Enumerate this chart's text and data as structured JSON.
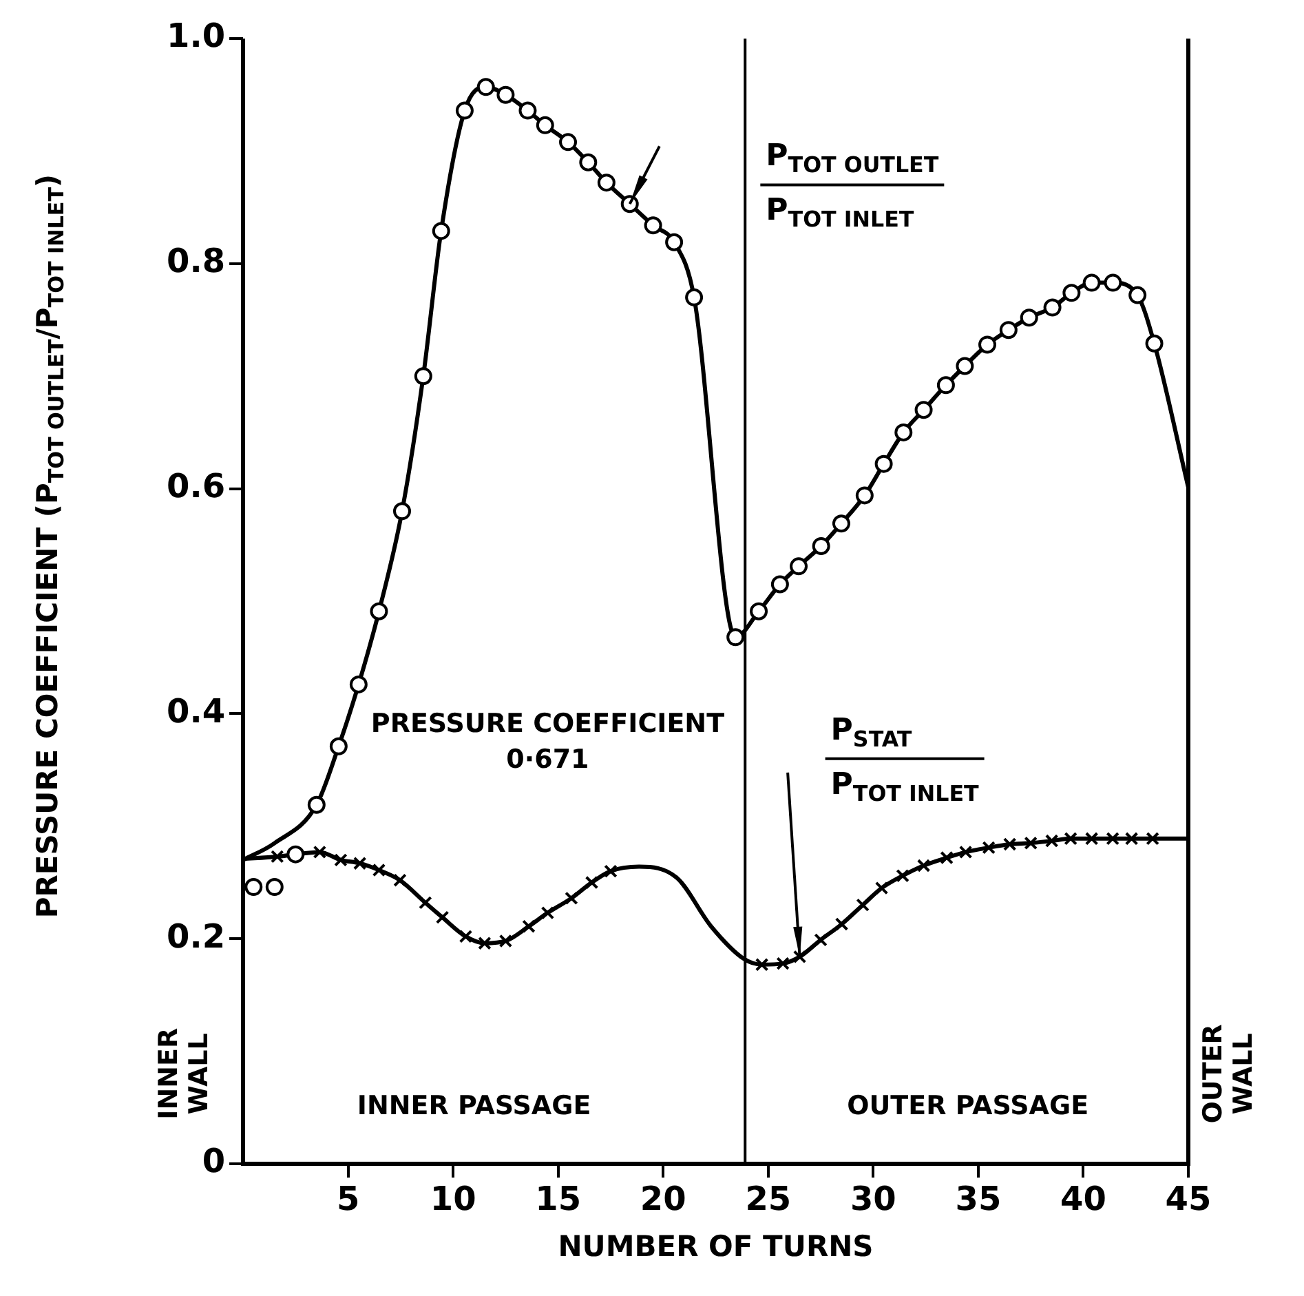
{
  "chart_data": {
    "type": "line",
    "xlabel": "NUMBER OF TURNS",
    "ylabel": "PRESSURE COEFFICIENT (P$_{TOT OUTLET}$/P$_{TOT INLET}$)",
    "xlim": [
      0,
      45
    ],
    "xticks": [
      5,
      10,
      15,
      20,
      25,
      30,
      35,
      40,
      45
    ],
    "ylim": [
      0,
      1
    ],
    "yticks": [
      0,
      0.2,
      0.4,
      0.6,
      0.8,
      {
        "value": 1,
        "label": "1.0"
      }
    ],
    "grid": false,
    "legend": false,
    "series": [
      {
        "name": "P$_{TOT OUTLET}$\nP$_{TOT INLET}$",
        "color": "#000000",
        "marker": "none",
        "x": [
          0,
          1.5,
          3.5,
          4.55,
          5.5,
          6.47,
          7.57,
          8.58,
          9.43,
          10.55,
          11.56,
          12.5,
          13.55,
          14.38,
          15.47,
          16.43,
          17.3,
          18.41,
          19.52,
          20.52,
          21.47,
          23.44,
          24.55,
          25.56,
          26.45,
          27.52,
          28.48,
          29.59,
          30.5,
          31.44,
          32.4,
          33.46,
          34.36,
          35.43,
          36.44,
          37.42,
          38.53,
          39.44,
          40.4,
          41.41,
          42.58,
          43.38,
          45
        ],
        "values": [
          0.27,
          0.285,
          0.319,
          0.371,
          0.426,
          0.491,
          0.58,
          0.7,
          0.829,
          0.936,
          0.957,
          0.95,
          0.936,
          0.923,
          0.908,
          0.89,
          0.872,
          0.853,
          0.834,
          0.819,
          0.77,
          0.468,
          0.491,
          0.515,
          0.531,
          0.549,
          0.569,
          0.594,
          0.622,
          0.65,
          0.67,
          0.692,
          0.709,
          0.728,
          0.741,
          0.752,
          0.761,
          0.774,
          0.783,
          0.783,
          0.772,
          0.729,
          0.601
        ]
      },
      {
        "type": "scatter",
        "color": "#000000",
        "marker": "circle",
        "x": [
          0.5,
          1.5,
          2.5,
          3.5,
          4.55,
          5.5,
          6.47,
          7.57,
          8.58,
          9.43,
          10.55,
          11.56,
          12.5,
          13.55,
          14.38,
          15.47,
          16.43,
          17.3,
          18.41,
          19.52,
          20.52,
          21.47,
          23.44,
          24.55,
          25.56,
          26.45,
          27.52,
          28.48,
          29.59,
          30.5,
          31.44,
          32.4,
          33.46,
          34.36,
          35.43,
          36.44,
          37.42,
          38.53,
          39.44,
          40.4,
          41.41,
          42.58,
          43.38
        ],
        "values": [
          0.246,
          0.246,
          0.275,
          0.319,
          0.371,
          0.426,
          0.491,
          0.58,
          0.7,
          0.829,
          0.936,
          0.957,
          0.95,
          0.936,
          0.923,
          0.908,
          0.89,
          0.872,
          0.853,
          0.834,
          0.819,
          0.77,
          0.468,
          0.491,
          0.515,
          0.531,
          0.549,
          0.569,
          0.594,
          0.622,
          0.65,
          0.67,
          0.692,
          0.709,
          0.728,
          0.741,
          0.752,
          0.761,
          0.774,
          0.783,
          0.783,
          0.772,
          0.729
        ]
      },
      {
        "name": "P$_{STAT}$\nP$_{TOT INLET}$",
        "color": "#000000",
        "marker": "none",
        "x": [
          0,
          1.63,
          3.65,
          4.65,
          5.56,
          6.47,
          7.47,
          8.68,
          9.49,
          10.6,
          11.5,
          12.5,
          13.6,
          14.5,
          15.63,
          16.6,
          17.5,
          18.85,
          20.66,
          22.28,
          23.85,
          24.7,
          25.7,
          26.5,
          27.5,
          28.5,
          29.5,
          30.4,
          31.4,
          32.4,
          33.5,
          34.4,
          35.5,
          36.5,
          37.5,
          38.5,
          39.4,
          40.4,
          41.4,
          42.3,
          43.3,
          45
        ],
        "values": [
          0.271,
          0.273,
          0.277,
          0.27,
          0.267,
          0.261,
          0.252,
          0.232,
          0.219,
          0.202,
          0.196,
          0.198,
          0.211,
          0.223,
          0.236,
          0.25,
          0.26,
          0.264,
          0.254,
          0.211,
          0.182,
          0.177,
          0.178,
          0.184,
          0.199,
          0.213,
          0.23,
          0.245,
          0.256,
          0.265,
          0.272,
          0.277,
          0.281,
          0.284,
          0.285,
          0.287,
          0.289,
          0.289,
          0.289,
          0.289,
          0.289,
          0.289
        ]
      },
      {
        "type": "scatter",
        "color": "#000000",
        "marker": "cross",
        "x": [
          1.63,
          3.65,
          4.65,
          5.56,
          6.47,
          7.47,
          8.68,
          9.49,
          10.6,
          11.5,
          12.5,
          13.6,
          14.5,
          15.63,
          16.6,
          17.5,
          24.7,
          25.7,
          26.5,
          27.5,
          28.5,
          29.5,
          30.4,
          31.4,
          32.4,
          33.5,
          34.4,
          35.5,
          36.5,
          37.5,
          38.5,
          39.4,
          40.4,
          41.4,
          42.3,
          43.3
        ],
        "values": [
          0.273,
          0.277,
          0.27,
          0.267,
          0.261,
          0.252,
          0.232,
          0.219,
          0.202,
          0.196,
          0.198,
          0.211,
          0.223,
          0.236,
          0.25,
          0.26,
          0.177,
          0.178,
          0.184,
          0.199,
          0.213,
          0.23,
          0.245,
          0.256,
          0.265,
          0.272,
          0.277,
          0.281,
          0.284,
          0.285,
          0.287,
          0.289,
          0.289,
          0.289,
          0.289,
          0.289
        ]
      }
    ],
    "ref_lines": [
      {
        "axis": "x",
        "value": 23.9,
        "color": "#000000"
      }
    ],
    "annotations": [
      "PRESSURE COEFFICIENT\n0·671",
      "INNER PASSAGE",
      "OUTER PASSAGE",
      "INNER\nWALL",
      "OUTER\nWALL"
    ]
  }
}
